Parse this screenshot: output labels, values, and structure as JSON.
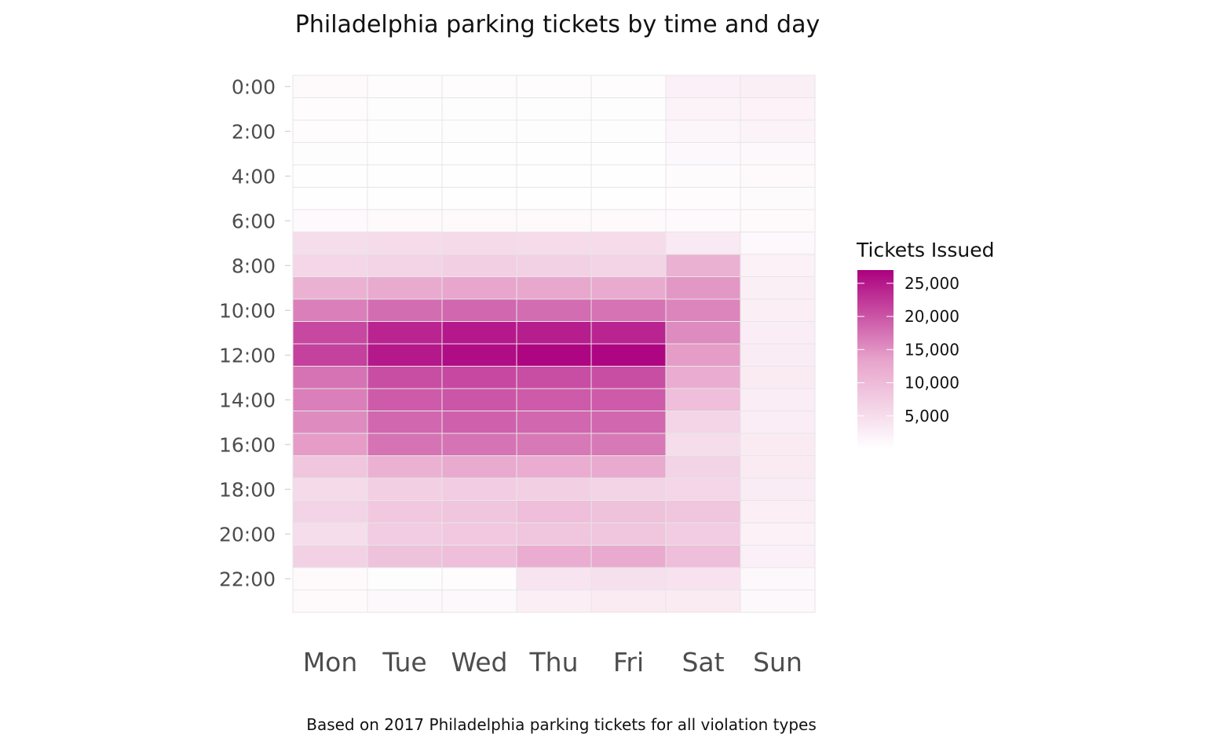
{
  "chart_data": {
    "type": "heatmap",
    "title": "Philadelphia parking tickets by time and day",
    "caption": "Based on 2017 Philadelphia parking tickets for all violation types",
    "x_categories": [
      "Mon",
      "Tue",
      "Wed",
      "Thu",
      "Fri",
      "Sat",
      "Sun"
    ],
    "y_categories": [
      "0:00",
      "1:00",
      "2:00",
      "3:00",
      "4:00",
      "5:00",
      "6:00",
      "7:00",
      "8:00",
      "9:00",
      "10:00",
      "11:00",
      "12:00",
      "13:00",
      "14:00",
      "15:00",
      "16:00",
      "17:00",
      "18:00",
      "19:00",
      "20:00",
      "21:00",
      "22:00",
      "23:00"
    ],
    "y_tick_labels": [
      "0:00",
      "2:00",
      "4:00",
      "6:00",
      "8:00",
      "10:00",
      "12:00",
      "14:00",
      "16:00",
      "18:00",
      "20:00",
      "22:00"
    ],
    "values": [
      [
        800,
        500,
        500,
        500,
        500,
        2200,
        2300
      ],
      [
        500,
        300,
        300,
        300,
        300,
        1700,
        1900
      ],
      [
        400,
        300,
        300,
        300,
        300,
        1500,
        1700
      ],
      [
        300,
        200,
        200,
        200,
        200,
        1000,
        1100
      ],
      [
        200,
        200,
        200,
        200,
        200,
        600,
        800
      ],
      [
        200,
        200,
        200,
        200,
        200,
        500,
        600
      ],
      [
        900,
        700,
        700,
        700,
        700,
        900,
        700
      ],
      [
        5000,
        5200,
        5400,
        5300,
        5100,
        3200,
        1000
      ],
      [
        6000,
        6500,
        7000,
        6800,
        6500,
        11500,
        2000
      ],
      [
        11500,
        12500,
        13000,
        12800,
        12500,
        14500,
        2300
      ],
      [
        16500,
        18000,
        18500,
        18000,
        17500,
        16000,
        2500
      ],
      [
        21000,
        24000,
        25000,
        24500,
        24000,
        15500,
        2700
      ],
      [
        21500,
        25000,
        26000,
        26500,
        26500,
        14000,
        2800
      ],
      [
        17500,
        20500,
        21000,
        20500,
        20500,
        12000,
        3000
      ],
      [
        16500,
        19500,
        20000,
        19500,
        19500,
        9500,
        2700
      ],
      [
        15500,
        18500,
        19000,
        18500,
        18500,
        6200,
        2700
      ],
      [
        14000,
        17500,
        17500,
        17000,
        17000,
        5000,
        3000
      ],
      [
        8500,
        11500,
        12500,
        12000,
        12500,
        6500,
        3000
      ],
      [
        5500,
        7000,
        7500,
        7000,
        6500,
        6000,
        2800
      ],
      [
        6500,
        8000,
        8500,
        9500,
        9000,
        8500,
        2500
      ],
      [
        5000,
        7500,
        8000,
        8500,
        8500,
        7500,
        2000
      ],
      [
        6800,
        9000,
        9500,
        12000,
        12500,
        9500,
        2200
      ],
      [
        800,
        300,
        400,
        4000,
        4500,
        4200,
        1000
      ],
      [
        800,
        1000,
        1000,
        2500,
        3000,
        3000,
        1000
      ]
    ],
    "legend": {
      "title": "Tickets Issued",
      "placement": "right",
      "ticks": [
        "5,000",
        "10,000",
        "15,000",
        "20,000",
        "25,000"
      ],
      "tick_values": [
        5000,
        10000,
        15000,
        20000,
        25000
      ],
      "range": [
        0,
        27000
      ]
    },
    "colors": {
      "low": "#ffffff",
      "mid": "#e7a3cb",
      "high": "#ac007f"
    },
    "grid": true
  }
}
